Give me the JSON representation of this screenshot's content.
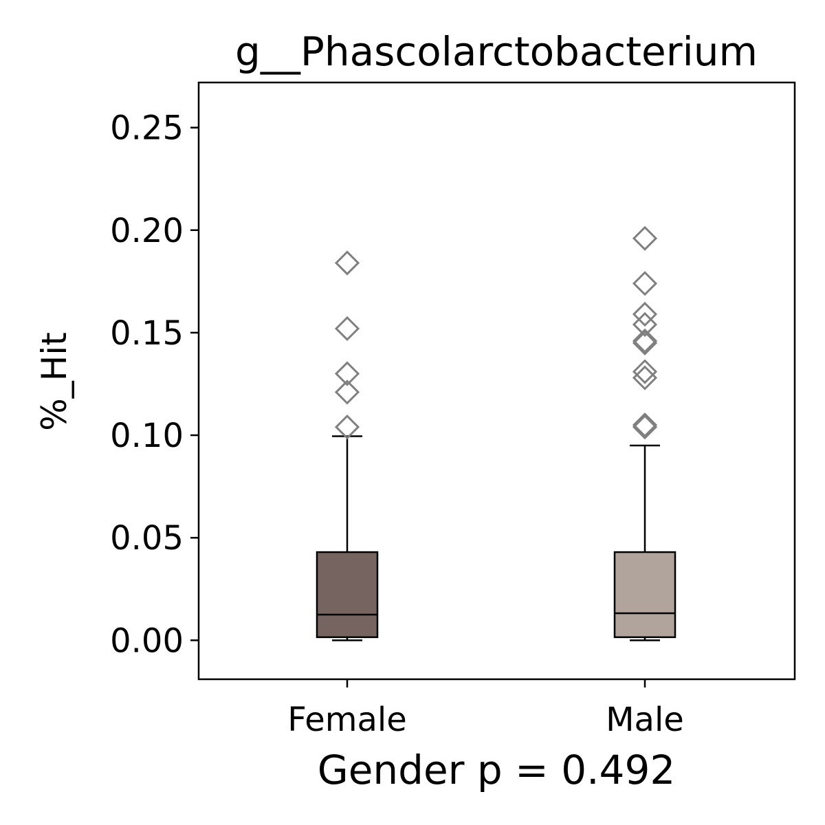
{
  "chart_data": {
    "type": "box",
    "title": "g__Phascolarctobacterium",
    "xlabel": "Gender p = 0.492",
    "ylabel": "%_Hit",
    "ylim": [
      -0.019,
      0.272
    ],
    "yticks": [
      "0.00",
      "0.05",
      "0.10",
      "0.15",
      "0.20",
      "0.25"
    ],
    "ytick_values": [
      0.0,
      0.05,
      0.1,
      0.15,
      0.2,
      0.25
    ],
    "grid": false,
    "categories": [
      "Female",
      "Male"
    ],
    "boxes": [
      {
        "name": "Female",
        "color": "#75645f",
        "whisker_low": 0.0,
        "q1": 0.0015,
        "median": 0.0125,
        "q3": 0.043,
        "whisker_high": 0.0995,
        "outliers": [
          0.184,
          0.152,
          0.13,
          0.121,
          0.104
        ]
      },
      {
        "name": "Male",
        "color": "#b0a49c",
        "whisker_low": 0.0,
        "q1": 0.0015,
        "median": 0.0132,
        "q3": 0.043,
        "whisker_high": 0.095,
        "outliers": [
          0.196,
          0.174,
          0.159,
          0.154,
          0.146,
          0.145,
          0.131,
          0.128,
          0.105,
          0.104
        ]
      }
    ],
    "outlier_marker": "diamond",
    "outlier_color": "#808080"
  }
}
